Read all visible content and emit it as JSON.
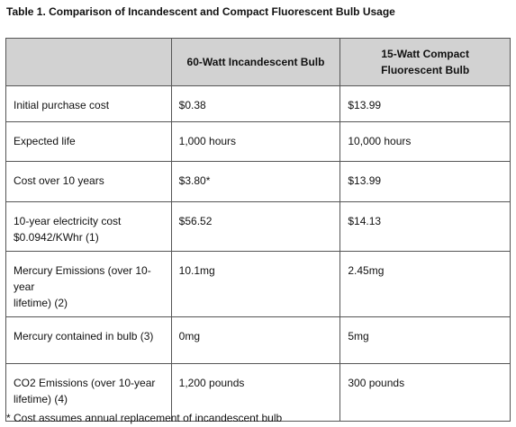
{
  "title": "Table 1. Comparison of Incandescent and Compact Fluorescent Bulb Usage",
  "table": {
    "header": [
      "60-Watt Incandescent Bulb",
      "15-Watt Compact Fluorescent Bulb"
    ],
    "rows": [
      [
        "Initial purchase cost",
        "$0.38",
        "$13.99"
      ],
      [
        "Expected life",
        "1,000 hours",
        "10,000 hours"
      ],
      [
        "Cost over 10 years",
        "$3.80*",
        "$13.99"
      ],
      [
        "10-year electricity cost\n$0.0942/KWhr (1)",
        "$56.52",
        "$14.13"
      ],
      [
        "Mercury Emissions (over 10-year\nlifetime) (2)",
        "10.1mg",
        "2.45mg"
      ],
      [
        "Mercury contained in bulb (3)",
        "0mg",
        "5mg"
      ],
      [
        "CO2 Emissions (over 10-year\nlifetime) (4)",
        "1,200 pounds",
        "300 pounds"
      ]
    ]
  },
  "footnote": "* Cost assumes annual replacement of incandescent bulb"
}
